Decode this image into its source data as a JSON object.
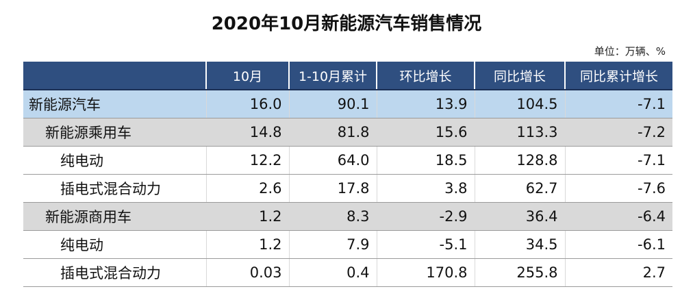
{
  "title": "2020年10月新能源汽车销售情况",
  "unit": "单位：万辆、%",
  "table": {
    "columns": [
      "",
      "10月",
      "1-10月累计",
      "环比增长",
      "同比增长",
      "同比累计增长"
    ],
    "rows": [
      {
        "label": "新能源汽车",
        "level": 0,
        "values": [
          "16.0",
          "90.1",
          "13.9",
          "104.5",
          "-7.1"
        ]
      },
      {
        "label": "新能源乘用车",
        "level": 1,
        "values": [
          "14.8",
          "81.8",
          "15.6",
          "113.3",
          "-7.2"
        ]
      },
      {
        "label": "纯电动",
        "level": 2,
        "values": [
          "12.2",
          "64.0",
          "18.5",
          "128.8",
          "-7.1"
        ]
      },
      {
        "label": "插电式混合动力",
        "level": 2,
        "values": [
          "2.6",
          "17.8",
          "3.8",
          "62.7",
          "-7.6"
        ]
      },
      {
        "label": "新能源商用车",
        "level": 1,
        "values": [
          "1.2",
          "8.3",
          "-2.9",
          "36.4",
          "-6.4"
        ]
      },
      {
        "label": "纯电动",
        "level": 2,
        "values": [
          "1.2",
          "7.9",
          "-5.1",
          "34.5",
          "-6.1"
        ]
      },
      {
        "label": "插电式混合动力",
        "level": 2,
        "values": [
          "0.03",
          "0.4",
          "170.8",
          "255.8",
          "2.7"
        ]
      }
    ]
  }
}
